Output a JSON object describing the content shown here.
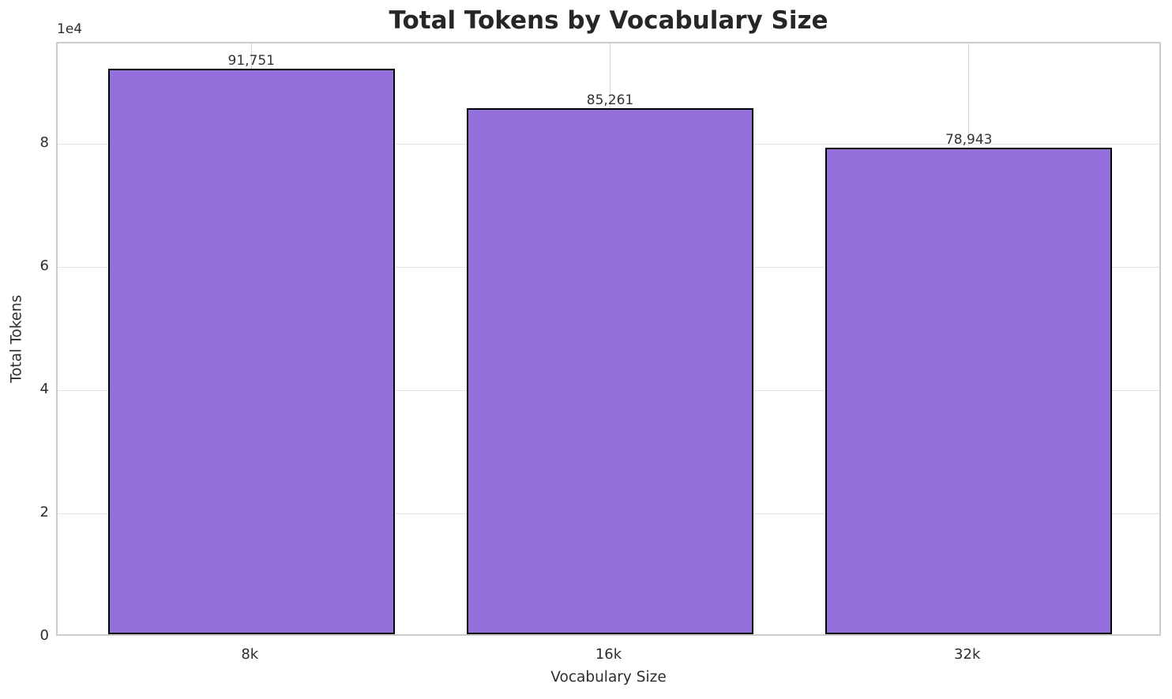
{
  "chart_data": {
    "type": "bar",
    "title": "Total Tokens by Vocabulary Size",
    "xlabel": "Vocabulary Size",
    "ylabel": "Total Tokens",
    "y_offset_text": "1e4",
    "categories": [
      "8k",
      "16k",
      "32k"
    ],
    "values": [
      91751,
      85261,
      78943
    ],
    "value_labels": [
      "91,751",
      "85,261",
      "78,943"
    ],
    "ylim": [
      0,
      96339
    ],
    "yticks": {
      "values": [
        0,
        20000,
        40000,
        60000,
        80000
      ],
      "labels": [
        "0",
        "2",
        "4",
        "6",
        "8"
      ]
    },
    "grid": true,
    "legend_position": "none",
    "colors": {
      "bar_fill": "#9370DB",
      "bar_edge": "#000000",
      "grid_h": "#e3e3e3",
      "grid_v": "#d5d5d5",
      "spine": "#cccccc",
      "text": "#2e2e2e",
      "title": "#262626"
    }
  }
}
